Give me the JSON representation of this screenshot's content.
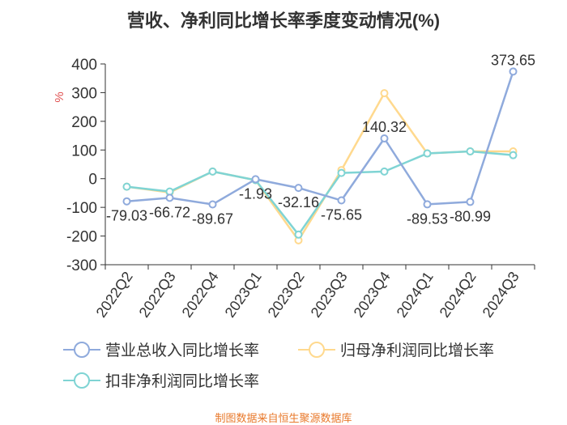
{
  "title": "营收、净利同比增长率季度变动情况(%)",
  "source": "制图数据来自恒生聚源数据库",
  "colors": {
    "revenue": "#8faadc",
    "net_profit": "#ffd98e",
    "deducted_profit": "#7fd4d4",
    "axis": "#333333",
    "grid": "#cccccc",
    "unit": "#e05050"
  },
  "chart_data": {
    "type": "line",
    "ylabel": "%",
    "ylim": [
      -300,
      400
    ],
    "yticks": [
      -300,
      -200,
      -100,
      0,
      100,
      200,
      300,
      400
    ],
    "grid": false,
    "legend_position": "bottom",
    "categories": [
      "2022Q2",
      "2022Q3",
      "2022Q4",
      "2023Q1",
      "2023Q2",
      "2023Q3",
      "2023Q4",
      "2024Q1",
      "2024Q2",
      "2024Q3"
    ],
    "series": [
      {
        "name": "营业总收入同比增长率",
        "color_key": "revenue",
        "values": [
          -79.03,
          -66.72,
          -89.67,
          -1.93,
          -32.16,
          -75.65,
          140.32,
          -89.53,
          -80.99,
          373.65
        ],
        "labels": [
          "-79.03",
          "-66.72",
          "-89.67",
          "-1.93",
          "-32.16",
          "-75.65",
          "140.32",
          "-89.53",
          "-80.99",
          "373.65"
        ]
      },
      {
        "name": "归母净利润同比增长率",
        "color_key": "net_profit",
        "values": [
          -28,
          -48,
          25,
          -5,
          -215,
          30,
          298,
          88,
          95,
          95
        ]
      },
      {
        "name": "扣非净利润同比增长率",
        "color_key": "deducted_profit",
        "values": [
          -28,
          -45,
          25,
          -5,
          -195,
          20,
          25,
          88,
          95,
          82
        ]
      }
    ]
  }
}
